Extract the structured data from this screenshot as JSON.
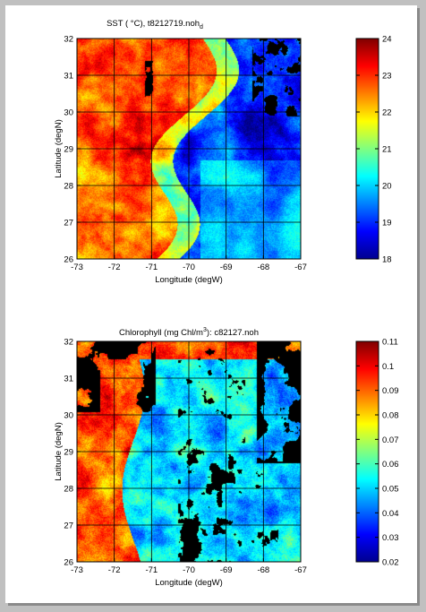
{
  "chart_data": [
    {
      "type": "heatmap",
      "title_main": "SST ( °C), t8212719.noh",
      "title_subscript": "d",
      "xlabel": "Longitude (degW)",
      "ylabel": "Latitude (degN)",
      "x_ticks": [
        "-73",
        "-72",
        "-71",
        "-70",
        "-69",
        "-68",
        "-67"
      ],
      "y_ticks": [
        "26",
        "27",
        "28",
        "29",
        "30",
        "31",
        "32"
      ],
      "xlim": [
        -73,
        -67
      ],
      "ylim": [
        26,
        32
      ],
      "grid": true,
      "colorbar": {
        "ticks": [
          "18",
          "19",
          "20",
          "21",
          "22",
          "23",
          "24"
        ],
        "range": [
          18,
          24
        ]
      },
      "colors": {
        "land": "#000000"
      }
    },
    {
      "type": "heatmap",
      "title_main": "Chlorophyll (mg Chl/m",
      "title_superscript": "3",
      "title_tail": "): c82127.noh",
      "xlabel": "Longitude (degW)",
      "ylabel": "Latitude (degN)",
      "x_ticks": [
        "-73",
        "-72",
        "-71",
        "-70",
        "-69",
        "-68",
        "-67"
      ],
      "y_ticks": [
        "26",
        "27",
        "28",
        "29",
        "30",
        "31",
        "32"
      ],
      "xlim": [
        -73,
        -67
      ],
      "ylim": [
        26,
        32
      ],
      "grid": true,
      "colorbar": {
        "ticks": [
          "0.02",
          "0.03",
          "0.04",
          "0.05",
          "0.06",
          "0.07",
          "0.08",
          "0.09",
          "0.1",
          "0.11"
        ],
        "range": [
          0.02,
          0.11
        ]
      },
      "colors": {
        "land": "#000000"
      }
    }
  ]
}
